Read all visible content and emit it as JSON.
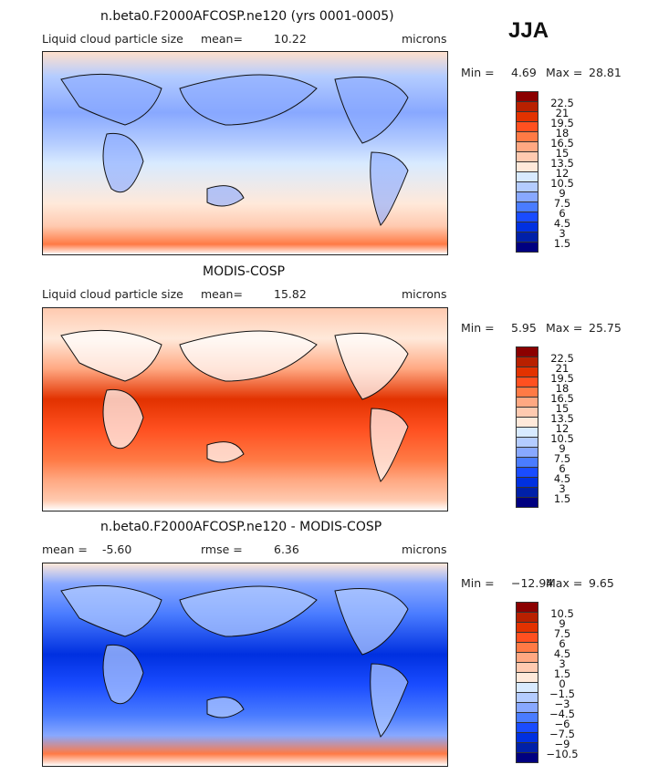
{
  "season": "JJA",
  "colors": [
    "#8b0000",
    "#b82000",
    "#e23200",
    "#ff5020",
    "#ff7a45",
    "#ffa882",
    "#ffcab0",
    "#ffe9da",
    "#d8eaff",
    "#b4ccff",
    "#88a8ff",
    "#4a7cff",
    "#1a4cff",
    "#0030e0",
    "#0020a8",
    "#000080"
  ],
  "panels": [
    {
      "title": "n.beta0.F2000AFCOSP.ne120 (yrs 0001-0005)",
      "variable": "Liquid cloud particle size",
      "mean_label": "mean=",
      "mean": "10.22",
      "units": "microns",
      "min_label": "Min =",
      "min": "4.69",
      "max_label": "Max =",
      "max": "28.81",
      "levels": [
        "22.5",
        "21",
        "19.5",
        "18",
        "16.5",
        "15",
        "13.5",
        "12",
        "10.5",
        "9",
        "7.5",
        "6",
        "4.5",
        "3",
        "1.5"
      ]
    },
    {
      "title": "MODIS-COSP",
      "variable": "Liquid cloud particle size",
      "mean_label": "mean=",
      "mean": "15.82",
      "units": "microns",
      "min_label": "Min =",
      "min": "5.95",
      "max_label": "Max =",
      "max": "25.75",
      "levels": [
        "22.5",
        "21",
        "19.5",
        "18",
        "16.5",
        "15",
        "13.5",
        "12",
        "10.5",
        "9",
        "7.5",
        "6",
        "4.5",
        "3",
        "1.5"
      ]
    },
    {
      "title": "n.beta0.F2000AFCOSP.ne120 - MODIS-COSP",
      "mean_label": "mean =",
      "mean": "-5.60",
      "rmse_label": "rmse =",
      "rmse": "6.36",
      "units": "microns",
      "min_label": "Min =",
      "min": "−12.94",
      "max_label": "Max =",
      "max": "9.65",
      "levels": [
        "10.5",
        "9",
        "7.5",
        "6",
        "4.5",
        "3",
        "1.5",
        "0",
        "−1.5",
        "−3",
        "−4.5",
        "−6",
        "−7.5",
        "−9",
        "−10.5"
      ]
    }
  ]
}
